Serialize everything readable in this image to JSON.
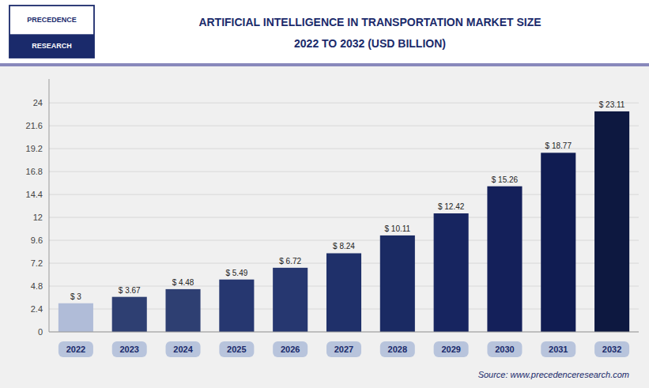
{
  "chart_data": {
    "type": "bar",
    "title": "ARTIFICIAL INTELLIGENCE IN TRANSPORTATION MARKET SIZE",
    "subtitle": "2022 TO 2032 (USD BILLION)",
    "annotations": [
      "PRECEDENCE",
      "RESEARCH",
      "Source: www.precedenceresearch.com"
    ],
    "categories": [
      "2022",
      "2023",
      "2024",
      "2025",
      "2026",
      "2027",
      "2028",
      "2029",
      "2030",
      "2031",
      "2032"
    ],
    "values": [
      3.0,
      3.67,
      4.48,
      5.49,
      6.72,
      8.24,
      10.11,
      12.42,
      15.26,
      18.77,
      23.11
    ],
    "value_labels": [
      "$ 3",
      "$ 3.67",
      "$ 4.48",
      "$ 5.49",
      "$ 6.72",
      "$ 8.24",
      "$ 10.11",
      "$ 12.42",
      "$ 15.26",
      "$ 18.77",
      "$ 23.11"
    ],
    "data_labels": true,
    "colors": [
      "#b0bcd8",
      "#2e3f72",
      "#2e3f72",
      "#263770",
      "#263770",
      "#1f306a",
      "#1a2a63",
      "#172560",
      "#14205a",
      "#101c52",
      "#0d1840"
    ],
    "ylim": [
      0,
      26.5
    ],
    "yticks": [
      0,
      2.4,
      4.8,
      7.2,
      9.6,
      12,
      14.4,
      16.8,
      19.2,
      21.6,
      24
    ],
    "grid": true
  }
}
